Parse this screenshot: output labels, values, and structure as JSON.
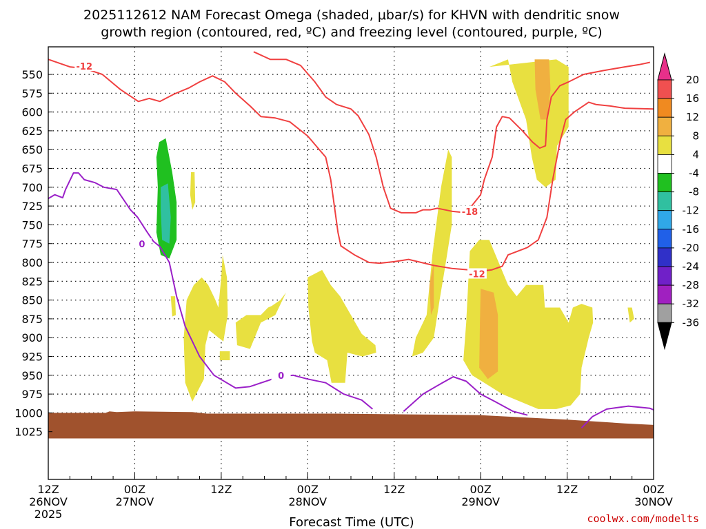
{
  "chart_data": {
    "type": "time-height contour",
    "title_line1": "2025112612 NAM Forecast Omega (shaded, μbar/s) for KHVN with dendritic snow",
    "title_line2": "growth region (contoured, red, ºC) and freezing level (contoured, purple, ºC)",
    "xlabel": "Forecast Time (UTC)",
    "credit": "coolwx.com/modelts",
    "y_levels_hpa": [
      550,
      575,
      600,
      625,
      650,
      675,
      700,
      725,
      750,
      775,
      800,
      825,
      850,
      875,
      900,
      925,
      950,
      975,
      1000,
      1025
    ],
    "y_tick_labels": [
      "550",
      "575",
      "600",
      "625",
      "650",
      "675",
      "700",
      "725",
      "750",
      "775",
      "800",
      "825",
      "850",
      "875",
      "900",
      "925",
      "950",
      "975",
      "1000",
      "1025"
    ],
    "x_ticks": [
      {
        "hour": 0,
        "line1": "12Z",
        "line2": "26NOV",
        "line3": "2025"
      },
      {
        "hour": 12,
        "line1": "00Z",
        "line2": "27NOV",
        "line3": ""
      },
      {
        "hour": 24,
        "line1": "12Z",
        "line2": "",
        "line3": ""
      },
      {
        "hour": 36,
        "line1": "00Z",
        "line2": "28NOV",
        "line3": ""
      },
      {
        "hour": 48,
        "line1": "12Z",
        "line2": "",
        "line3": ""
      },
      {
        "hour": 60,
        "line1": "00Z",
        "line2": "29NOV",
        "line3": ""
      },
      {
        "hour": 72,
        "line1": "12Z",
        "line2": "",
        "line3": ""
      },
      {
        "hour": 84,
        "line1": "00Z",
        "line2": "30NOV",
        "line3": ""
      }
    ],
    "x_range_hours": [
      0,
      84
    ],
    "colorbar": {
      "labels": [
        "20",
        "16",
        "12",
        "8",
        "4",
        "-4",
        "-8",
        "-12",
        "-16",
        "-20",
        "-24",
        "-28",
        "-32",
        "-36"
      ],
      "colors": [
        "#e8308a",
        "#f05050",
        "#f08a20",
        "#f0b040",
        "#e8e040",
        "#ffffff",
        "#20c020",
        "#30c0a0",
        "#30a8e8",
        "#2060e8",
        "#3030c8",
        "#7020c8",
        "#a020c0",
        "#a0a0a0",
        "#000000"
      ]
    },
    "contour_labels": {
      "dgz_a": "-12",
      "dgz_b": "-18",
      "dgz_c": "-12",
      "freezing_a": "0",
      "freezing_b": "0"
    },
    "ground_color": "#a0522d",
    "dgz_color": "#f04040",
    "freezing_color": "#9a20c8"
  }
}
